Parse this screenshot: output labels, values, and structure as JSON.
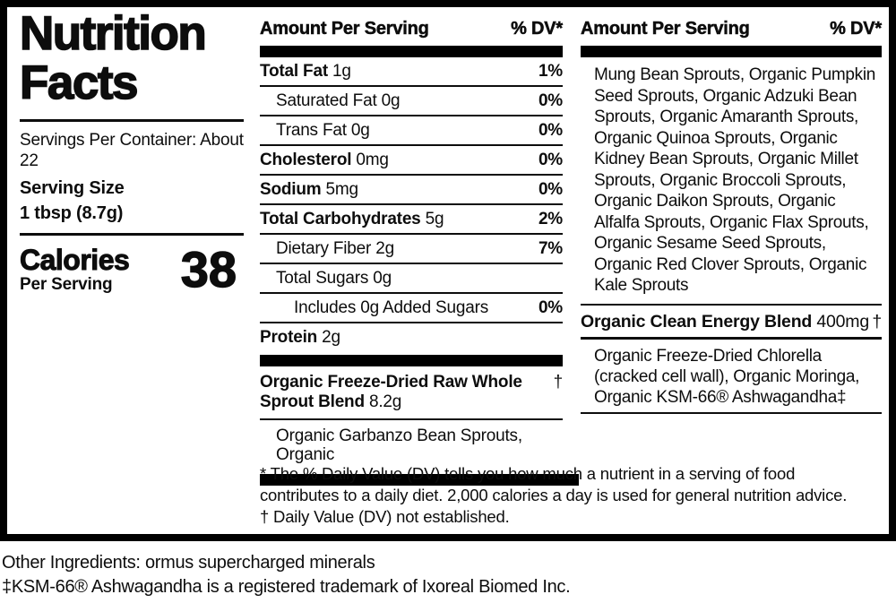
{
  "colors": {
    "text": "#0d0d0d",
    "background": "#ffffff"
  },
  "left": {
    "title_line1": "Nutrition",
    "title_line2": "Facts",
    "servings_per_container": "Servings Per Container: About 22",
    "serving_size_label": "Serving Size",
    "serving_size_value": "1 tbsp (8.7g)",
    "calories_label": "Calories",
    "calories_sublabel": "Per Serving",
    "calories_value": "38"
  },
  "mid": {
    "header": "Amount Per Serving",
    "dv_header": "% DV*",
    "rows": [
      {
        "bold": "Total Fat",
        "rest": " 1g",
        "dv": "1%"
      },
      {
        "bold": "",
        "rest": "Saturated Fat 0g",
        "dv": "0%"
      },
      {
        "bold": "",
        "rest": "Trans Fat 0g",
        "dv": "0%"
      },
      {
        "bold": "Cholesterol",
        "rest": " 0mg",
        "dv": "0%"
      },
      {
        "bold": "Sodium",
        "rest": " 5mg",
        "dv": "0%"
      },
      {
        "bold": "Total Carbohydrates",
        "rest": " 5g",
        "dv": "2%"
      },
      {
        "bold": "",
        "rest": "Dietary Fiber 2g",
        "dv": "7%"
      },
      {
        "bold": "",
        "rest": "Total Sugars 0g",
        "dv": ""
      },
      {
        "bold": "",
        "rest": "Includes 0g Added Sugars",
        "dv": "0%"
      },
      {
        "bold": "Protein",
        "rest": " 2g",
        "dv": ""
      }
    ],
    "blend": {
      "bold": "Organic Freeze-Dried Raw Whole Sprout Blend",
      "rest": " 8.2g",
      "dv": "†"
    },
    "blend_sub": "Organic Garbanzo Bean Sprouts, Organic"
  },
  "right": {
    "header": "Amount Per Serving",
    "dv_header": "% DV*",
    "sprout_ingredients": "Mung Bean Sprouts, Organic Pumpkin Seed Sprouts, Organic Adzuki Bean Sprouts, Organic Amaranth Sprouts, Organic Quinoa Sprouts, Organic Kidney Bean Sprouts, Organic Millet Sprouts, Organic Broccoli Sprouts, Organic Daikon Sprouts, Organic Alfalfa Sprouts, Organic Flax Sprouts, Organic Sesame Seed Sprouts, Organic Red Clover Sprouts, Organic Kale Sprouts",
    "energy_blend": {
      "bold": "Organic Clean Energy Blend",
      "rest": " 400mg",
      "dv": "†"
    },
    "energy_ingredients": "Organic Freeze-Dried Chlorella (cracked cell wall), Organic Moringa, Organic KSM-66® Ashwagandha‡"
  },
  "footnotes": {
    "daily_value_note": "* The % Daily Value (DV) tells you how much a nutrient in a serving of food contributes to a daily diet. 2,000 calories a day is used for general nutrition advice.",
    "dagger_note": "† Daily Value (DV) not established."
  },
  "below": {
    "other_ingredients": "Other Ingredients: ormus supercharged minerals",
    "trademark_note": "‡KSM-66® Ashwagandha is a registered trademark of Ixoreal Biomed Inc."
  }
}
